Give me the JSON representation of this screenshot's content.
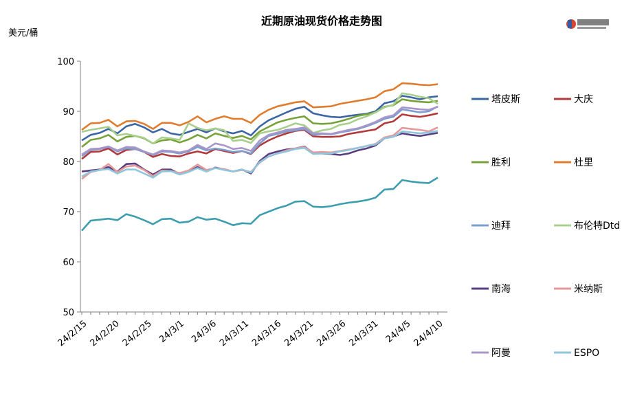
{
  "chart_data": {
    "type": "line",
    "title": "近期原油现货价格走势图",
    "ylabel": "美元/桶",
    "ylim": [
      50,
      100
    ],
    "yticks": [
      50,
      60,
      70,
      80,
      90,
      100
    ],
    "grid": false,
    "legend_position": "right",
    "x_tick_labels": [
      "24/2/15",
      "24/2/20",
      "24/2/25",
      "24/3/1",
      "24/3/6",
      "24/3/11",
      "24/3/16",
      "24/3/21",
      "24/3/26",
      "24/3/31",
      "24/4/5",
      "24/4/10"
    ],
    "x_tick_index": [
      0,
      5,
      10,
      15,
      20,
      25,
      30,
      35,
      40,
      45,
      50,
      55
    ],
    "series": [
      {
        "name": "塔皮斯",
        "color": "#3B65A5",
        "values": [
          84.2,
          85.3,
          85.7,
          86.5,
          85.6,
          87.0,
          87.5,
          86.8,
          85.8,
          86.5,
          85.6,
          85.3,
          85.9,
          86.5,
          85.8,
          86.6,
          86.0,
          85.6,
          86.1,
          85.2,
          87.0,
          88.2,
          89.0,
          89.8,
          90.5,
          90.9,
          89.6,
          89.2,
          88.9,
          88.8,
          89.1,
          89.3,
          89.5,
          90.0,
          91.6,
          92.0,
          93.1,
          92.8,
          92.4,
          92.8,
          93.0
        ]
      },
      {
        "name": "大庆",
        "color": "#B23A3A",
        "values": [
          80.5,
          81.9,
          82.0,
          82.6,
          81.4,
          82.3,
          82.5,
          81.9,
          80.9,
          81.5,
          81.1,
          81.0,
          81.6,
          82.0,
          81.6,
          82.5,
          82.1,
          81.7,
          82.1,
          81.5,
          83.2,
          84.2,
          85.0,
          85.6,
          86.1,
          86.3,
          85.0,
          84.9,
          84.9,
          85.0,
          85.5,
          85.8,
          86.1,
          86.4,
          87.6,
          88.0,
          89.4,
          89.1,
          88.9,
          89.2,
          89.6
        ]
      },
      {
        "name": "胜利",
        "color": "#77A23A",
        "values": [
          82.9,
          84.3,
          84.6,
          85.3,
          84.0,
          84.9,
          85.1,
          84.6,
          83.6,
          84.2,
          84.4,
          83.8,
          84.4,
          85.3,
          84.6,
          85.6,
          85.1,
          84.7,
          85.1,
          84.4,
          86.0,
          86.9,
          87.8,
          88.3,
          88.7,
          89.0,
          87.6,
          87.5,
          87.6,
          88.0,
          88.5,
          89.1,
          89.4,
          89.8,
          90.9,
          91.2,
          92.4,
          92.1,
          91.9,
          91.8,
          92.1
        ]
      },
      {
        "name": "杜里",
        "color": "#E07C2E",
        "values": [
          86.3,
          87.6,
          87.7,
          88.3,
          87.0,
          88.0,
          88.1,
          87.5,
          86.5,
          87.7,
          87.7,
          87.2,
          87.9,
          89.0,
          87.8,
          88.5,
          89.0,
          88.5,
          88.5,
          87.7,
          89.3,
          90.3,
          91.0,
          91.4,
          91.8,
          92.0,
          90.8,
          90.9,
          91.0,
          91.5,
          91.8,
          92.1,
          92.4,
          92.8,
          94.0,
          94.4,
          95.6,
          95.5,
          95.3,
          95.2,
          95.4
        ]
      },
      {
        "name": "迪拜",
        "color": "#7B9ECF",
        "values": [
          81.1,
          82.3,
          82.5,
          82.9,
          82.0,
          82.6,
          82.5,
          81.9,
          81.3,
          82.0,
          81.9,
          81.6,
          82.0,
          82.9,
          82.2,
          82.6,
          82.3,
          81.9,
          82.1,
          81.6,
          83.6,
          85.1,
          85.5,
          86.0,
          86.2,
          86.5,
          85.3,
          85.5,
          85.4,
          85.8,
          86.1,
          86.5,
          87.0,
          87.7,
          88.5,
          88.9,
          90.4,
          90.1,
          89.8,
          90.0,
          91.0
        ]
      },
      {
        "name": "布伦特Dtd",
        "color": "#A9CF8C",
        "values": [
          85.9,
          86.3,
          86.6,
          86.9,
          85.2,
          85.5,
          85.1,
          84.7,
          83.6,
          84.8,
          84.6,
          84.3,
          87.6,
          86.7,
          86.2,
          86.6,
          86.2,
          84.1,
          84.3,
          83.7,
          85.6,
          86.0,
          86.3,
          86.9,
          87.6,
          87.2,
          85.7,
          86.2,
          86.5,
          87.3,
          87.6,
          88.4,
          89.0,
          89.8,
          90.8,
          91.3,
          93.6,
          93.3,
          92.9,
          92.6,
          91.5
        ]
      },
      {
        "name": "南海",
        "color": "#5A3E82",
        "values": [
          78.0,
          78.2,
          78.4,
          78.9,
          78.0,
          79.5,
          79.6,
          78.4,
          77.4,
          78.4,
          78.4,
          77.5,
          78.0,
          78.9,
          78.0,
          78.8,
          78.4,
          78.0,
          78.4,
          77.6,
          80.1,
          81.5,
          82.0,
          82.4,
          82.6,
          83.0,
          81.7,
          81.6,
          81.5,
          81.3,
          81.6,
          82.2,
          82.6,
          83.2,
          84.6,
          85.0,
          85.6,
          85.3,
          85.1,
          85.4,
          85.7
        ]
      },
      {
        "name": "米纳斯",
        "color": "#E39A99",
        "values": [
          76.5,
          77.9,
          78.3,
          79.5,
          77.9,
          79.0,
          79.2,
          78.3,
          77.1,
          78.2,
          78.1,
          77.7,
          78.2,
          79.4,
          78.3,
          78.7,
          78.5,
          78.0,
          78.3,
          77.9,
          79.8,
          81.0,
          81.6,
          82.2,
          82.6,
          82.9,
          81.8,
          81.9,
          81.8,
          82.1,
          82.4,
          82.7,
          83.1,
          83.5,
          84.8,
          85.2,
          86.7,
          86.5,
          86.3,
          86.0,
          86.8
        ]
      },
      {
        "name": "阿曼",
        "color": "#A995C9",
        "values": [
          81.4,
          82.5,
          82.6,
          83.0,
          82.2,
          82.9,
          82.8,
          82.0,
          81.4,
          82.2,
          82.1,
          81.8,
          82.2,
          83.3,
          82.5,
          83.6,
          83.2,
          82.5,
          82.7,
          82.1,
          84.2,
          85.3,
          85.8,
          86.3,
          86.5,
          86.8,
          85.6,
          85.6,
          85.5,
          85.9,
          86.3,
          86.6,
          87.2,
          87.9,
          88.8,
          89.2,
          90.8,
          90.6,
          90.4,
          90.3,
          90.9
        ]
      },
      {
        "name": "ESPO",
        "color": "#8FC5DD",
        "values": [
          77.0,
          78.0,
          78.3,
          78.5,
          77.6,
          78.4,
          78.4,
          77.6,
          76.8,
          78.0,
          78.1,
          77.4,
          77.9,
          78.7,
          78.0,
          78.7,
          78.3,
          78.0,
          78.4,
          77.8,
          79.9,
          81.0,
          81.6,
          82.0,
          82.5,
          82.7,
          81.5,
          81.6,
          81.6,
          82.0,
          82.3,
          82.7,
          83.1,
          83.4,
          84.6,
          84.9,
          86.0,
          85.8,
          85.6,
          85.8,
          86.1
        ]
      },
      {
        "name": "",
        "color": "#3C9DAE",
        "values": [
          66.2,
          68.2,
          68.4,
          68.6,
          68.3,
          69.5,
          69.0,
          68.3,
          67.5,
          68.5,
          68.6,
          67.8,
          68.0,
          68.9,
          68.4,
          68.6,
          68.0,
          67.3,
          67.7,
          67.6,
          69.3,
          70.0,
          70.7,
          71.2,
          72.0,
          72.1,
          71.0,
          70.9,
          71.1,
          71.5,
          71.8,
          72.0,
          72.3,
          72.8,
          74.4,
          74.5,
          76.3,
          76.0,
          75.8,
          75.7,
          76.8
        ]
      }
    ]
  }
}
